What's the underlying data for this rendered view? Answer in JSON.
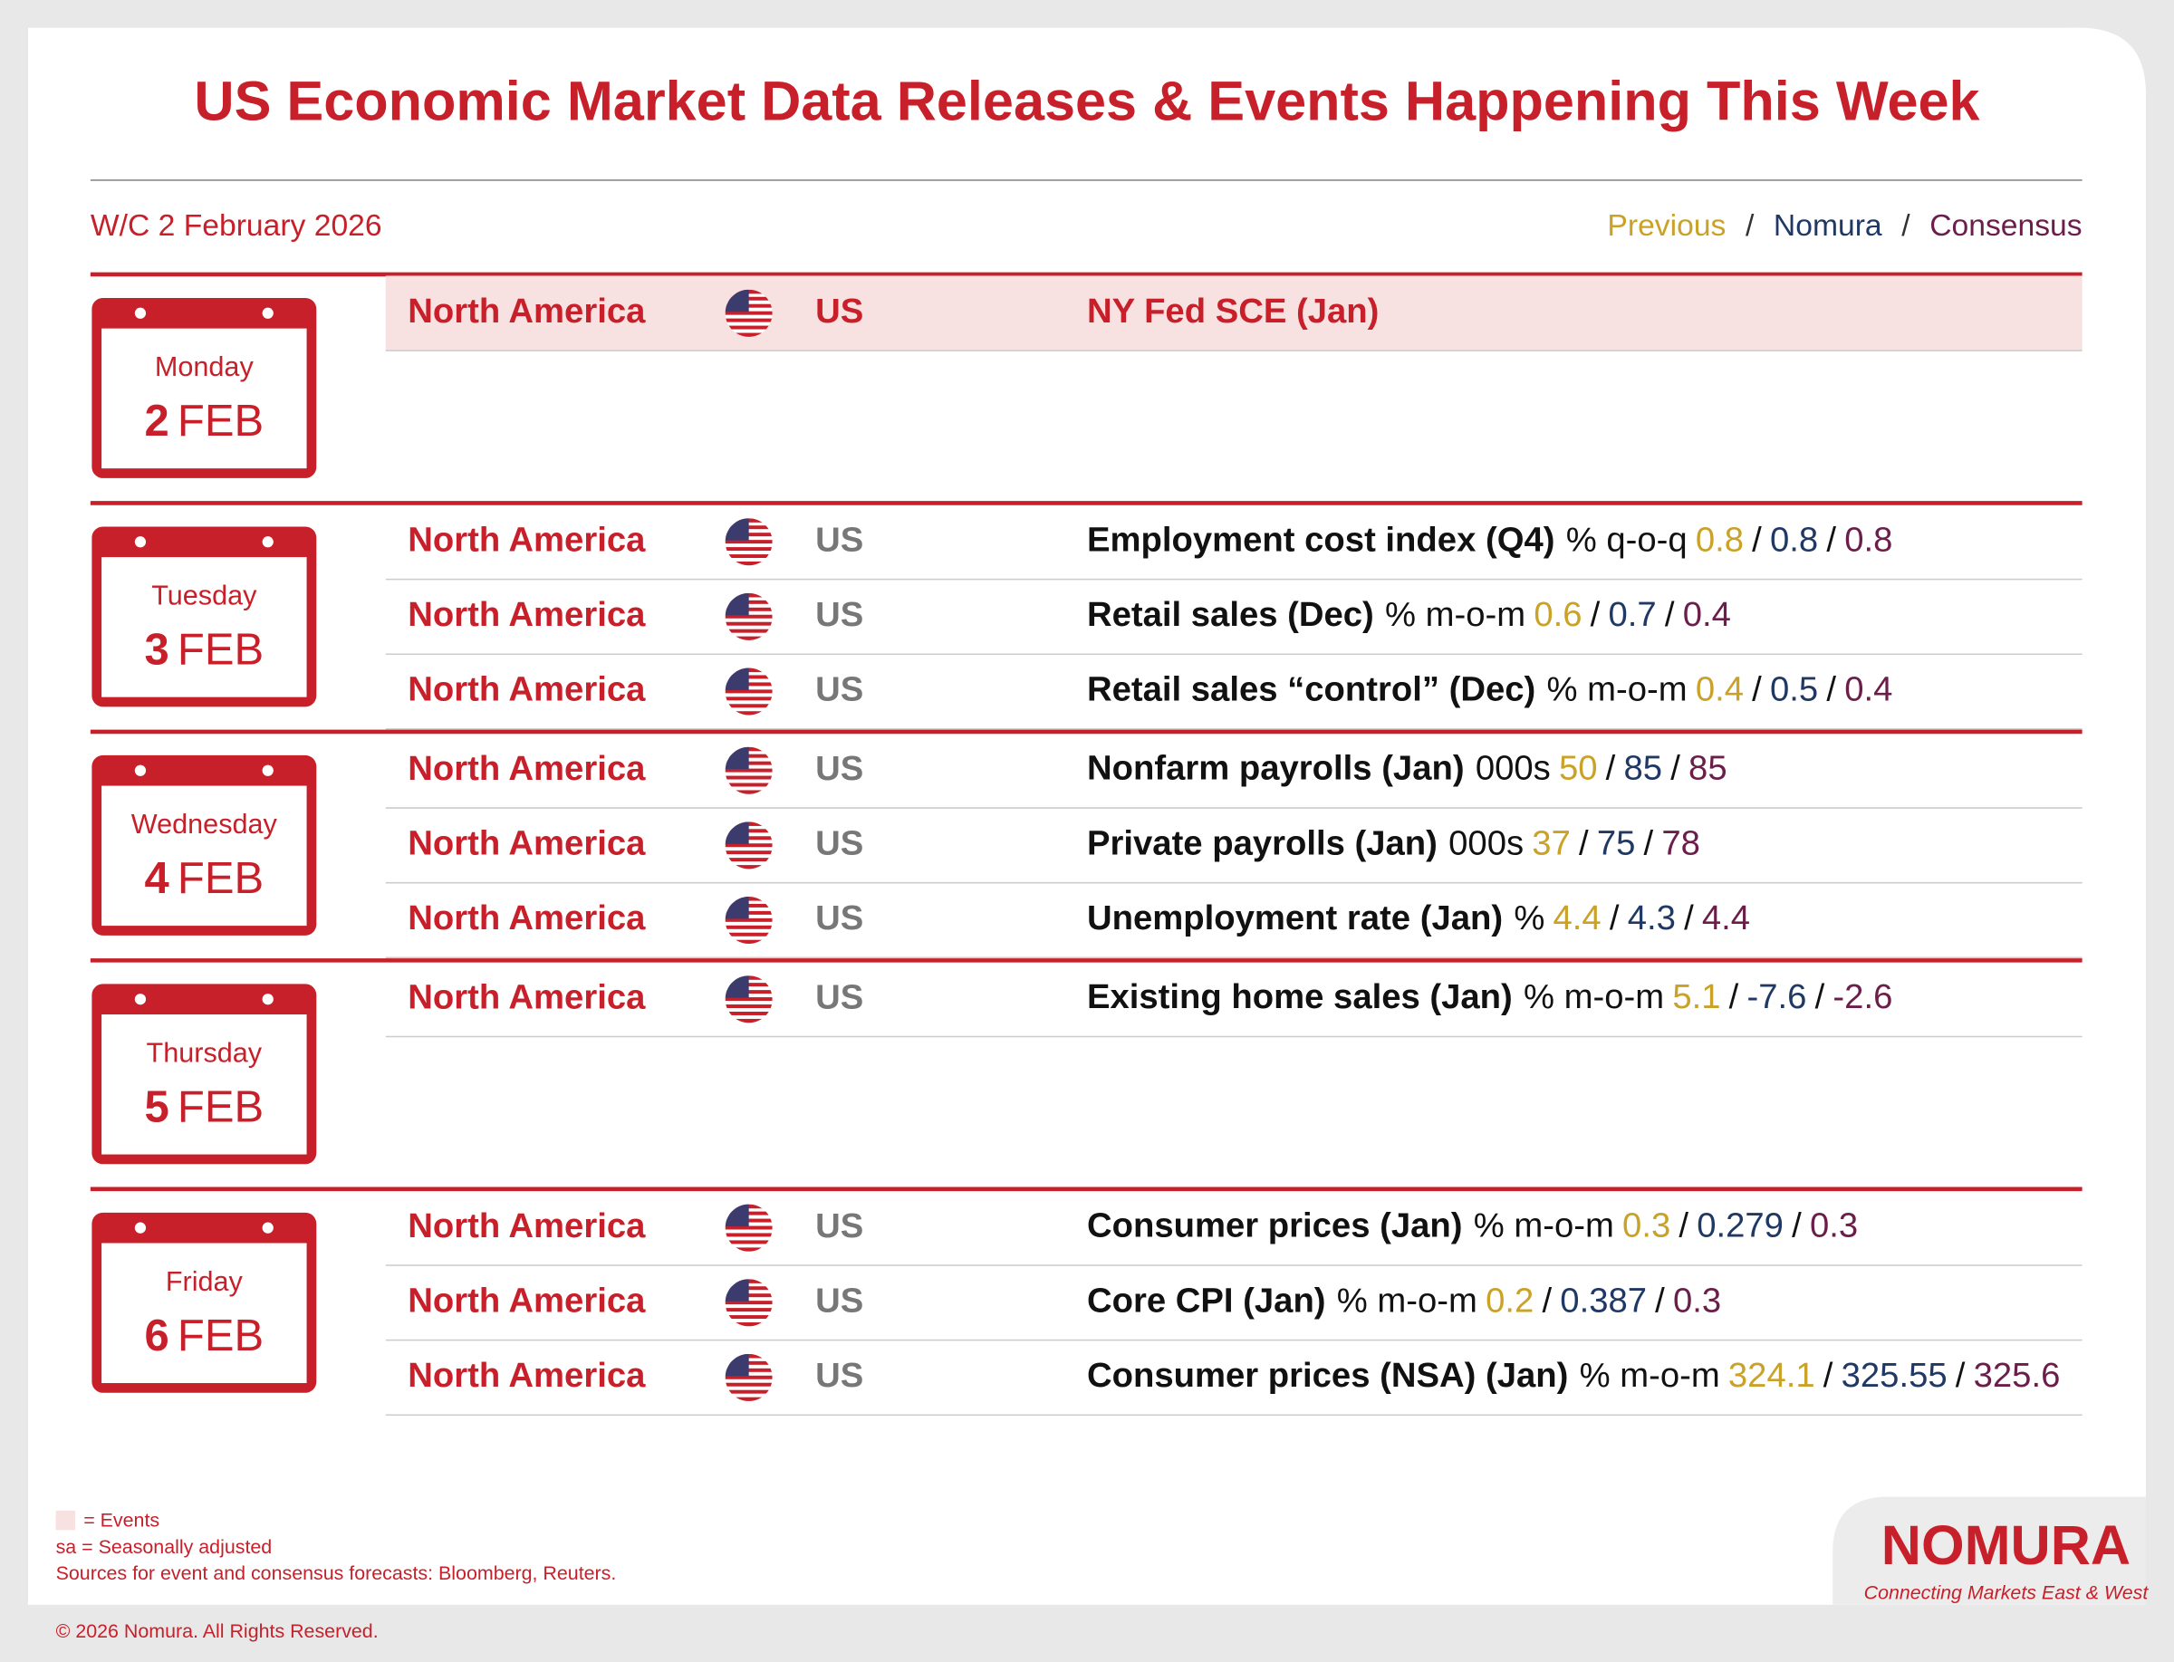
{
  "header": {
    "title": "US Economic Market Data Releases & Events Happening This Week",
    "week": "W/C 2 February 2026",
    "legend": [
      "Previous",
      "Nomura",
      "Consensus"
    ],
    "separator": "/"
  },
  "days": [
    {
      "weekday": "Monday",
      "day": "2",
      "month": "FEB",
      "events": [
        {
          "region": "North America",
          "country": "US",
          "name": "NY Fed SCE (Jan)",
          "is_event": true
        }
      ]
    },
    {
      "weekday": "Tuesday",
      "day": "3",
      "month": "FEB",
      "events": [
        {
          "region": "North America",
          "country": "US",
          "name": "Employment cost index (Q4)",
          "unit": "% q-o-q",
          "previous": 0.8,
          "nomura": 0.8,
          "consensus": 0.8
        },
        {
          "region": "North America",
          "country": "US",
          "name": "Retail sales (Dec)",
          "unit": "% m-o-m",
          "previous": 0.6,
          "nomura": 0.7,
          "consensus": 0.4
        },
        {
          "region": "North America",
          "country": "US",
          "name": "Retail sales “control” (Dec)",
          "unit": "% m-o-m",
          "previous": 0.4,
          "nomura": 0.5,
          "consensus": 0.4
        }
      ]
    },
    {
      "weekday": "Wednesday",
      "day": "4",
      "month": "FEB",
      "events": [
        {
          "region": "North America",
          "country": "US",
          "name": "Nonfarm payrolls (Jan)",
          "unit": "000s",
          "previous": 50,
          "nomura": 85,
          "consensus": 85
        },
        {
          "region": "North America",
          "country": "US",
          "name": "Private payrolls (Jan)",
          "unit": "000s",
          "previous": 37,
          "nomura": 75,
          "consensus": 78
        },
        {
          "region": "North America",
          "country": "US",
          "name": "Unemployment rate (Jan)",
          "unit": "%",
          "previous": 4.4,
          "nomura": 4.3,
          "consensus": 4.4
        }
      ]
    },
    {
      "weekday": "Thursday",
      "day": "5",
      "month": "FEB",
      "events": [
        {
          "region": "North America",
          "country": "US",
          "name": "Existing home sales (Jan)",
          "unit": "% m-o-m",
          "previous": 5.1,
          "nomura": -7.6,
          "consensus": -2.6
        }
      ]
    },
    {
      "weekday": "Friday",
      "day": "6",
      "month": "FEB",
      "events": [
        {
          "region": "North America",
          "country": "US",
          "name": "Consumer prices (Jan)",
          "unit": "% m-o-m",
          "previous": 0.3,
          "nomura": 0.279,
          "consensus": 0.3
        },
        {
          "region": "North America",
          "country": "US",
          "name": "Core CPI (Jan)",
          "unit": "% m-o-m",
          "previous": 0.2,
          "nomura": 0.387,
          "consensus": 0.3
        },
        {
          "region": "North America",
          "country": "US",
          "name": "Consumer prices (NSA) (Jan)",
          "unit": "% m-o-m",
          "previous": 324.1,
          "nomura": 325.55,
          "consensus": 325.6
        }
      ]
    }
  ],
  "footer": {
    "notes": [
      "= Events",
      "sa = Seasonally adjusted",
      "Sources for event and consensus forecasts: Bloomberg, Reuters."
    ],
    "copyright": "© 2026 Nomura. All Rights Reserved.",
    "logo": "NOMURA",
    "tagline": "Connecting Markets East & West"
  }
}
